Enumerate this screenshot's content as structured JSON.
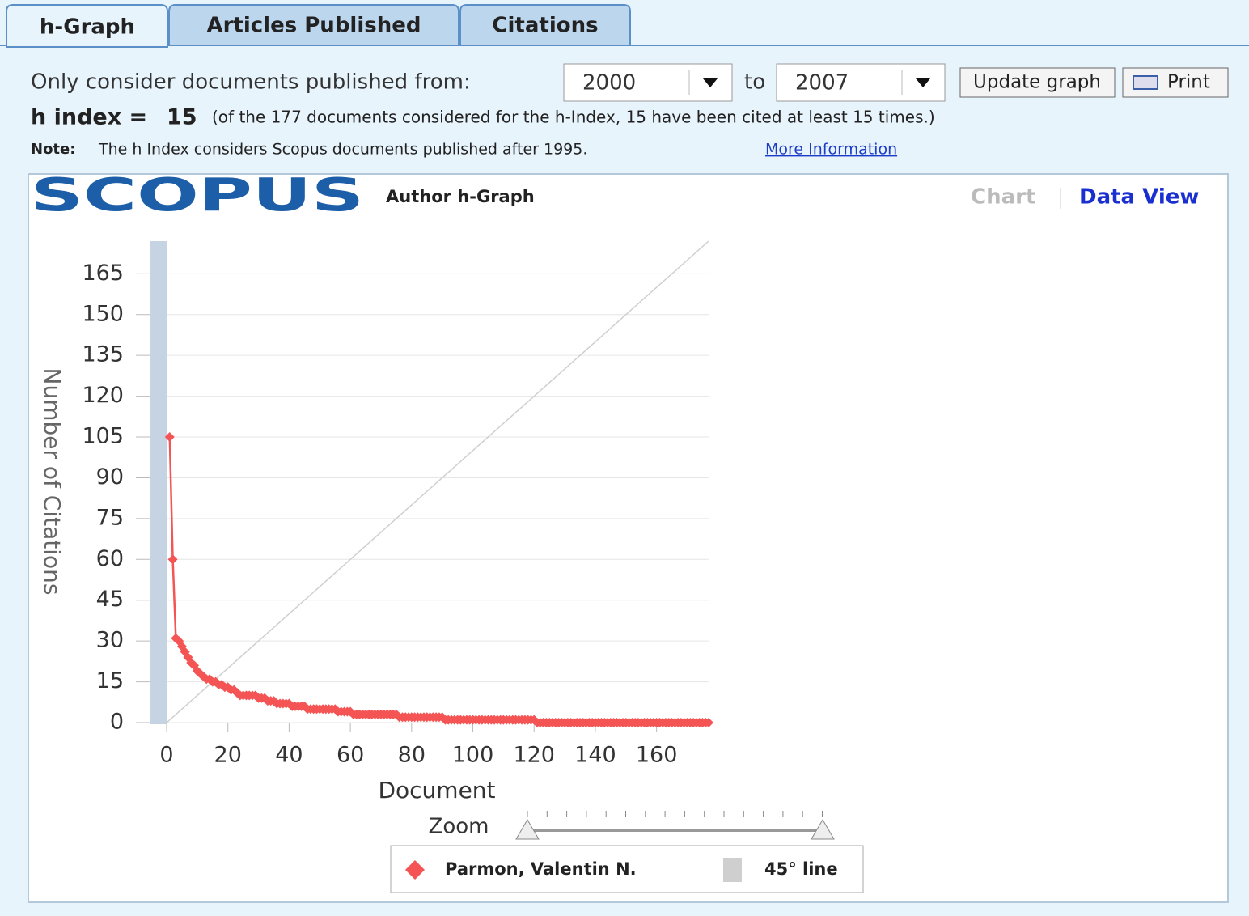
{
  "tabs": [
    "h-Graph",
    "Articles Published",
    "Citations"
  ],
  "controls": {
    "from_label": "Only consider documents published from:",
    "from": "2000",
    "to_label": "to",
    "to": "2007",
    "update": "Update graph",
    "print": "Print"
  },
  "h_index": {
    "label": "h index =",
    "value": 15,
    "detail": "(of the 177 documents considered for the h-Index, 15 have been cited at least 15 times.)"
  },
  "note": {
    "label": "Note:",
    "text": "The h Index considers Scopus documents published after 1995.",
    "link": "More Information"
  },
  "logo": "SCOPUS",
  "graph_title": "Author h-Graph",
  "views": [
    "Chart",
    "Data View"
  ],
  "zoom": "Zoom",
  "chart_data": {
    "type": "line",
    "x_label": "Document",
    "y_label": "Number of Citations",
    "xlim": [
      0,
      177
    ],
    "ylim": [
      0,
      177
    ],
    "xticks": [
      0,
      20,
      40,
      60,
      80,
      100,
      120,
      140,
      160
    ],
    "yticks": [
      0,
      15,
      30,
      45,
      60,
      75,
      90,
      105,
      120,
      135,
      150,
      165
    ],
    "grid": true,
    "x": [
      1,
      2,
      3,
      4,
      5,
      6,
      7,
      8,
      9,
      10,
      11,
      12,
      13,
      14,
      15,
      16,
      17,
      18,
      19,
      20,
      21,
      22,
      23,
      24,
      25,
      26,
      27,
      28,
      29,
      30,
      31,
      32,
      33,
      34,
      35,
      36,
      37,
      38,
      39,
      40,
      41,
      42,
      43,
      44,
      45,
      46,
      47,
      48,
      49,
      50,
      51,
      52,
      53,
      54,
      55,
      56,
      57,
      58,
      59,
      60,
      61,
      62,
      63,
      64,
      65,
      66,
      67,
      68,
      69,
      70,
      71,
      72,
      73,
      74,
      75,
      76,
      77,
      78,
      79,
      80,
      81,
      82,
      83,
      84,
      85,
      86,
      87,
      88,
      89,
      90,
      91,
      92,
      93,
      94,
      95,
      96,
      97,
      98,
      99,
      100,
      101,
      102,
      103,
      104,
      105,
      106,
      107,
      108,
      109,
      110,
      111,
      112,
      113,
      114,
      115,
      116,
      117,
      118,
      119,
      120,
      121,
      122,
      123,
      124,
      125,
      126,
      127,
      128,
      129,
      130,
      131,
      132,
      133,
      134,
      135,
      136,
      137,
      138,
      139,
      140,
      141,
      142,
      143,
      144,
      145,
      146,
      147,
      148,
      149,
      150,
      151,
      152,
      153,
      154,
      155,
      156,
      157,
      158,
      159,
      160,
      161,
      162,
      163,
      164,
      165,
      166,
      167,
      168,
      169,
      170,
      171,
      172,
      173,
      174,
      175,
      176,
      177
    ],
    "series": [
      {
        "name": "Parmon, Valentin N.",
        "color": "#f45454",
        "values": [
          105,
          60,
          31,
          30,
          28,
          26,
          24,
          22,
          21,
          19,
          18,
          17,
          16,
          16,
          15,
          15,
          14,
          14,
          13,
          13,
          12,
          12,
          11,
          10,
          10,
          10,
          10,
          10,
          10,
          9,
          9,
          9,
          8,
          8,
          8,
          7,
          7,
          7,
          7,
          7,
          6,
          6,
          6,
          6,
          6,
          5,
          5,
          5,
          5,
          5,
          5,
          5,
          5,
          5,
          5,
          4,
          4,
          4,
          4,
          4,
          3,
          3,
          3,
          3,
          3,
          3,
          3,
          3,
          3,
          3,
          3,
          3,
          3,
          3,
          3,
          2,
          2,
          2,
          2,
          2,
          2,
          2,
          2,
          2,
          2,
          2,
          2,
          2,
          2,
          2,
          1,
          1,
          1,
          1,
          1,
          1,
          1,
          1,
          1,
          1,
          1,
          1,
          1,
          1,
          1,
          1,
          1,
          1,
          1,
          1,
          1,
          1,
          1,
          1,
          1,
          1,
          1,
          1,
          1,
          1,
          0,
          0,
          0,
          0,
          0,
          0,
          0,
          0,
          0,
          0,
          0,
          0,
          0,
          0,
          0,
          0,
          0,
          0,
          0,
          0,
          0,
          0,
          0,
          0,
          0,
          0,
          0,
          0,
          0,
          0,
          0,
          0,
          0,
          0,
          0,
          0,
          0,
          0,
          0,
          0,
          0,
          0,
          0,
          0,
          0,
          0,
          0,
          0,
          0,
          0,
          0,
          0,
          0,
          0,
          0,
          0,
          0
        ]
      }
    ],
    "reference_line": {
      "name": "45° line",
      "color": "#cfcfcf",
      "x": [
        0,
        177
      ],
      "values": [
        0,
        177
      ]
    }
  }
}
